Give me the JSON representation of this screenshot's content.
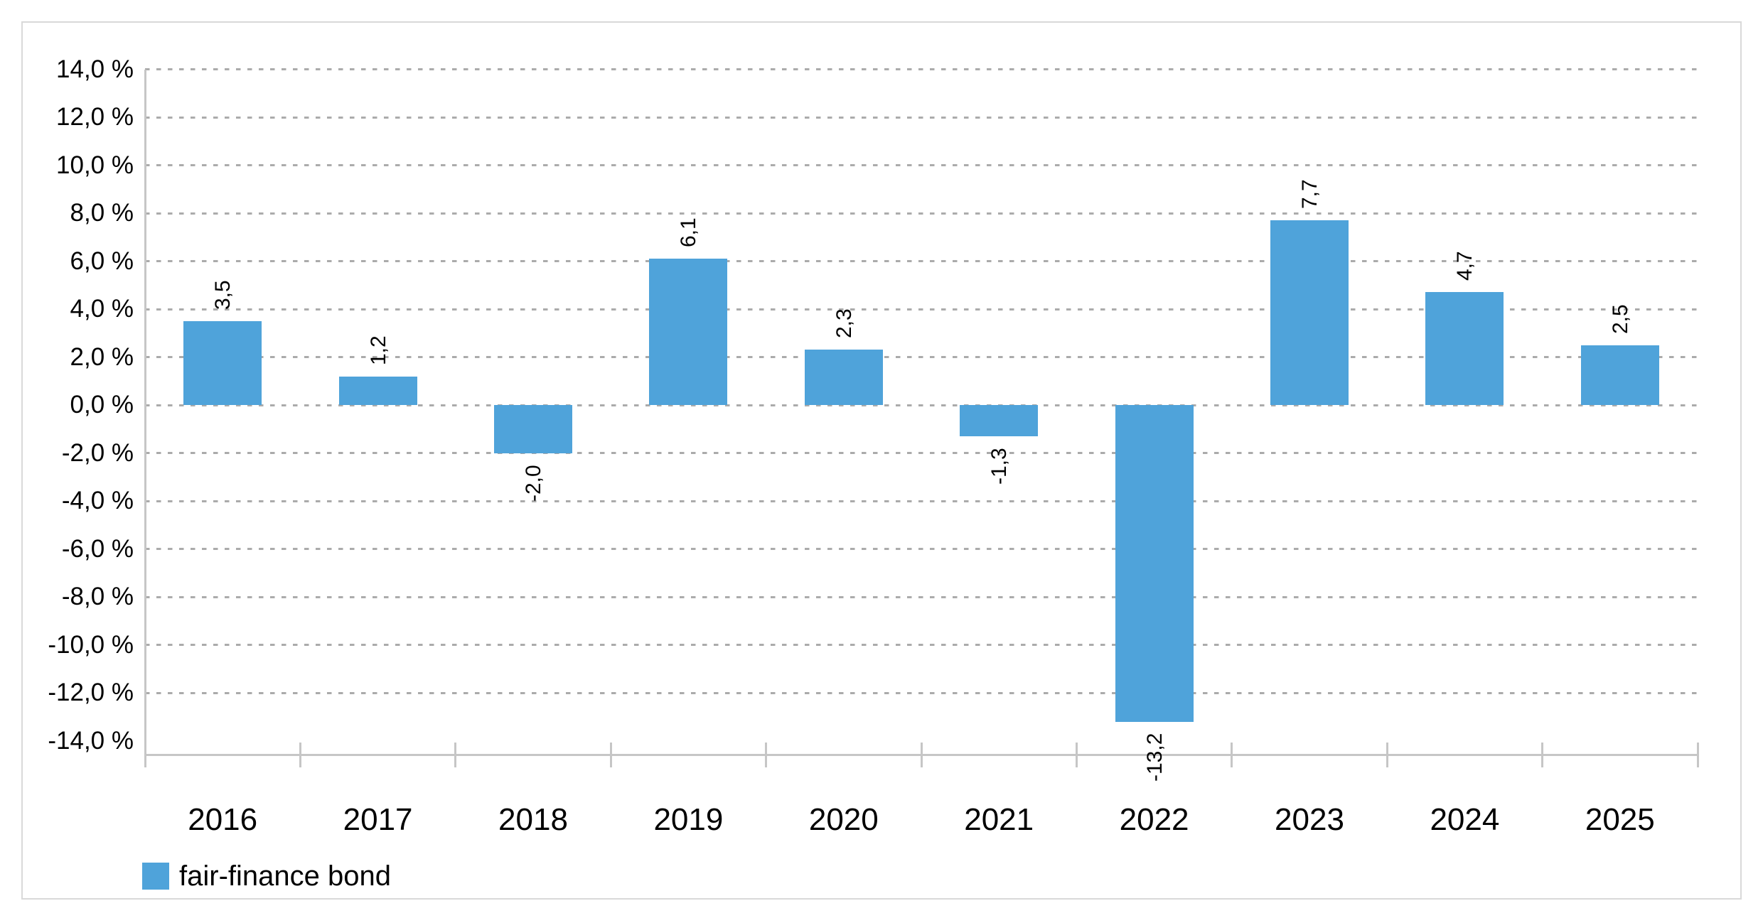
{
  "chart_data": {
    "type": "bar",
    "title": "",
    "xlabel": "",
    "ylabel": "",
    "categories": [
      "2016",
      "2017",
      "2018",
      "2019",
      "2020",
      "2021",
      "2022",
      "2023",
      "2024",
      "2025"
    ],
    "values": [
      3.5,
      1.2,
      -2.0,
      6.1,
      2.3,
      -1.3,
      -13.2,
      7.7,
      4.7,
      2.5
    ],
    "value_labels": [
      "3,5",
      "1,2",
      "-2,0",
      "6,1",
      "2,3",
      "-1,3",
      "-13,2",
      "7,7",
      "4,7",
      "2,5"
    ],
    "series": [
      {
        "name": "fair-finance bond",
        "values": [
          3.5,
          1.2,
          -2.0,
          6.1,
          2.3,
          -1.3,
          -13.2,
          7.7,
          4.7,
          2.5
        ]
      }
    ],
    "y_tick_values": [
      14,
      12,
      10,
      8,
      6,
      4,
      2,
      0,
      -2,
      -4,
      -6,
      -8,
      -10,
      -12,
      -14
    ],
    "y_tick_labels": [
      "14,0 %",
      "12,0 %",
      "10,0 %",
      "8,0 %",
      "6,0 %",
      "4,0 %",
      "2,0 %",
      "0,0 %",
      "-2,0 %",
      "-4,0 %",
      "-6,0 %",
      "-8,0 %",
      "-10,0 %",
      "-12,0 %",
      "-14,0 %"
    ],
    "gridline_values": [
      14,
      12,
      10,
      8,
      6,
      4,
      2,
      0,
      -2,
      -4,
      -6,
      -8,
      -10,
      -12
    ],
    "ylim": [
      -14.6,
      14
    ],
    "grid": "dotted-horizontal",
    "legend_position": "bottom-left",
    "bar_color": "#4FA3DA",
    "grid_color": "#ababab",
    "axis_color": "#c6c6c6",
    "label_color": "#000000"
  },
  "legend": {
    "label": "fair-finance bond",
    "swatch_color": "#4FA3DA"
  }
}
